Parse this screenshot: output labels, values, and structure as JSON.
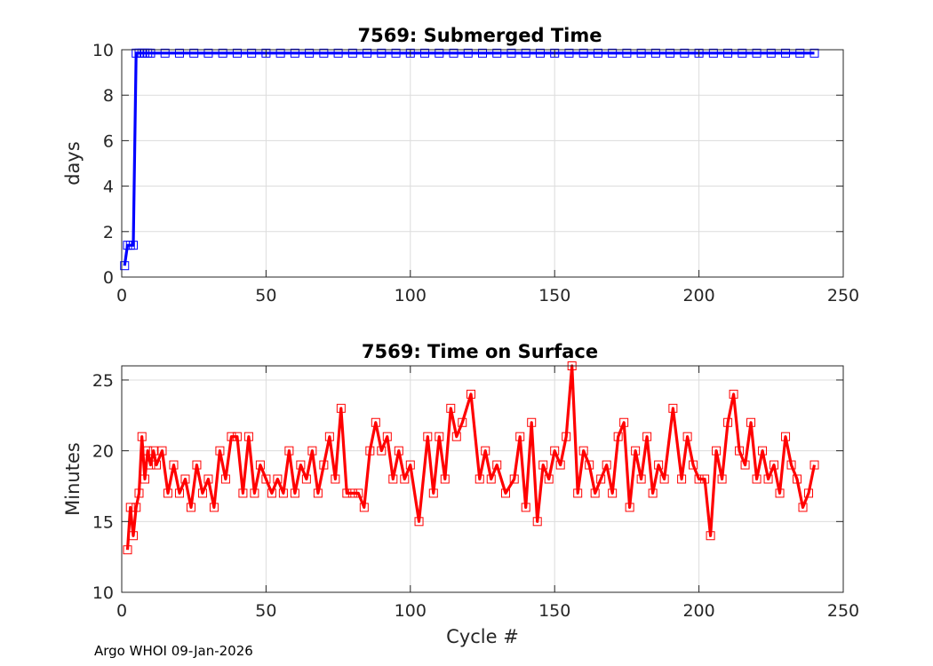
{
  "footer": "Argo WHOI 09-Jan-2026",
  "colors": {
    "top_series": "#0000ff",
    "bottom_series": "#ff0000",
    "axes": "#262626",
    "grid": "#dcdcdc"
  },
  "chart_data": [
    {
      "type": "line",
      "title": "7569: Submerged Time",
      "xlabel": "",
      "ylabel": "days",
      "xlim": [
        0,
        250
      ],
      "ylim": [
        0,
        10
      ],
      "xticks": [
        0,
        50,
        100,
        150,
        200,
        250
      ],
      "yticks": [
        0,
        2,
        4,
        6,
        8,
        10
      ],
      "grid": true,
      "marker": "square",
      "series": [
        {
          "color": "#0000ff",
          "x": [
            1,
            2,
            3,
            4,
            5,
            6,
            7,
            8,
            9,
            10,
            15,
            20,
            25,
            30,
            35,
            40,
            45,
            50,
            55,
            60,
            65,
            70,
            75,
            80,
            85,
            90,
            95,
            100,
            105,
            110,
            115,
            120,
            125,
            130,
            135,
            140,
            145,
            150,
            155,
            160,
            165,
            170,
            175,
            180,
            185,
            190,
            195,
            200,
            205,
            210,
            215,
            220,
            225,
            230,
            235,
            240
          ],
          "y": [
            0.5,
            1.4,
            1.4,
            1.4,
            9.85,
            9.85,
            9.85,
            9.85,
            9.85,
            9.85,
            9.85,
            9.85,
            9.85,
            9.85,
            9.85,
            9.85,
            9.85,
            9.85,
            9.85,
            9.85,
            9.85,
            9.85,
            9.85,
            9.85,
            9.85,
            9.85,
            9.85,
            9.85,
            9.85,
            9.85,
            9.85,
            9.85,
            9.85,
            9.85,
            9.85,
            9.85,
            9.85,
            9.85,
            9.85,
            9.85,
            9.85,
            9.85,
            9.85,
            9.85,
            9.85,
            9.85,
            9.85,
            9.85,
            9.85,
            9.85,
            9.85,
            9.85,
            9.85,
            9.85,
            9.85,
            9.85
          ]
        }
      ]
    },
    {
      "type": "line",
      "title": "7569: Time on Surface",
      "xlabel": "Cycle #",
      "ylabel": "Minutes",
      "xlim": [
        0,
        250
      ],
      "ylim": [
        10,
        26
      ],
      "xticks": [
        0,
        50,
        100,
        150,
        200,
        250
      ],
      "yticks": [
        10,
        15,
        20,
        25
      ],
      "grid": true,
      "marker": "square",
      "series": [
        {
          "color": "#ff0000",
          "x": [
            2,
            3,
            4,
            5,
            6,
            7,
            8,
            9,
            10,
            11,
            12,
            14,
            16,
            18,
            20,
            22,
            24,
            26,
            28,
            30,
            32,
            34,
            36,
            38,
            40,
            42,
            44,
            46,
            48,
            50,
            52,
            54,
            56,
            58,
            60,
            62,
            64,
            66,
            68,
            70,
            72,
            74,
            76,
            78,
            80,
            82,
            84,
            86,
            88,
            90,
            92,
            94,
            96,
            98,
            100,
            103,
            106,
            108,
            110,
            112,
            114,
            116,
            118,
            121,
            124,
            126,
            128,
            130,
            133,
            136,
            138,
            140,
            142,
            144,
            146,
            148,
            150,
            152,
            154,
            156,
            158,
            160,
            162,
            164,
            166,
            168,
            170,
            172,
            174,
            176,
            178,
            180,
            182,
            184,
            186,
            188,
            191,
            194,
            196,
            198,
            200,
            202,
            204,
            206,
            208,
            210,
            212,
            214,
            216,
            218,
            220,
            222,
            224,
            226,
            228,
            230,
            232,
            234,
            236,
            238,
            240
          ],
          "y": [
            13,
            16,
            14,
            16,
            17,
            21,
            18,
            20,
            19,
            20,
            19,
            20,
            17,
            19,
            17,
            18,
            16,
            19,
            17,
            18,
            16,
            20,
            18,
            21,
            21,
            17,
            21,
            17,
            19,
            18,
            17,
            18,
            17,
            20,
            17,
            19,
            18,
            20,
            17,
            19,
            21,
            18,
            23,
            17,
            17,
            17,
            16,
            20,
            22,
            20,
            21,
            18,
            20,
            18,
            19,
            15,
            21,
            17,
            21,
            18,
            23,
            21,
            22,
            24,
            18,
            20,
            18,
            19,
            17,
            18,
            21,
            16,
            22,
            15,
            19,
            18,
            20,
            19,
            21,
            26,
            17,
            20,
            19,
            17,
            18,
            19,
            17,
            21,
            22,
            16,
            20,
            18,
            21,
            17,
            19,
            18,
            23,
            18,
            21,
            19,
            18,
            18,
            14,
            20,
            18,
            22,
            24,
            20,
            19,
            22,
            18,
            20,
            18,
            19,
            17,
            21,
            19,
            18,
            16,
            17,
            19
          ]
        }
      ]
    }
  ]
}
